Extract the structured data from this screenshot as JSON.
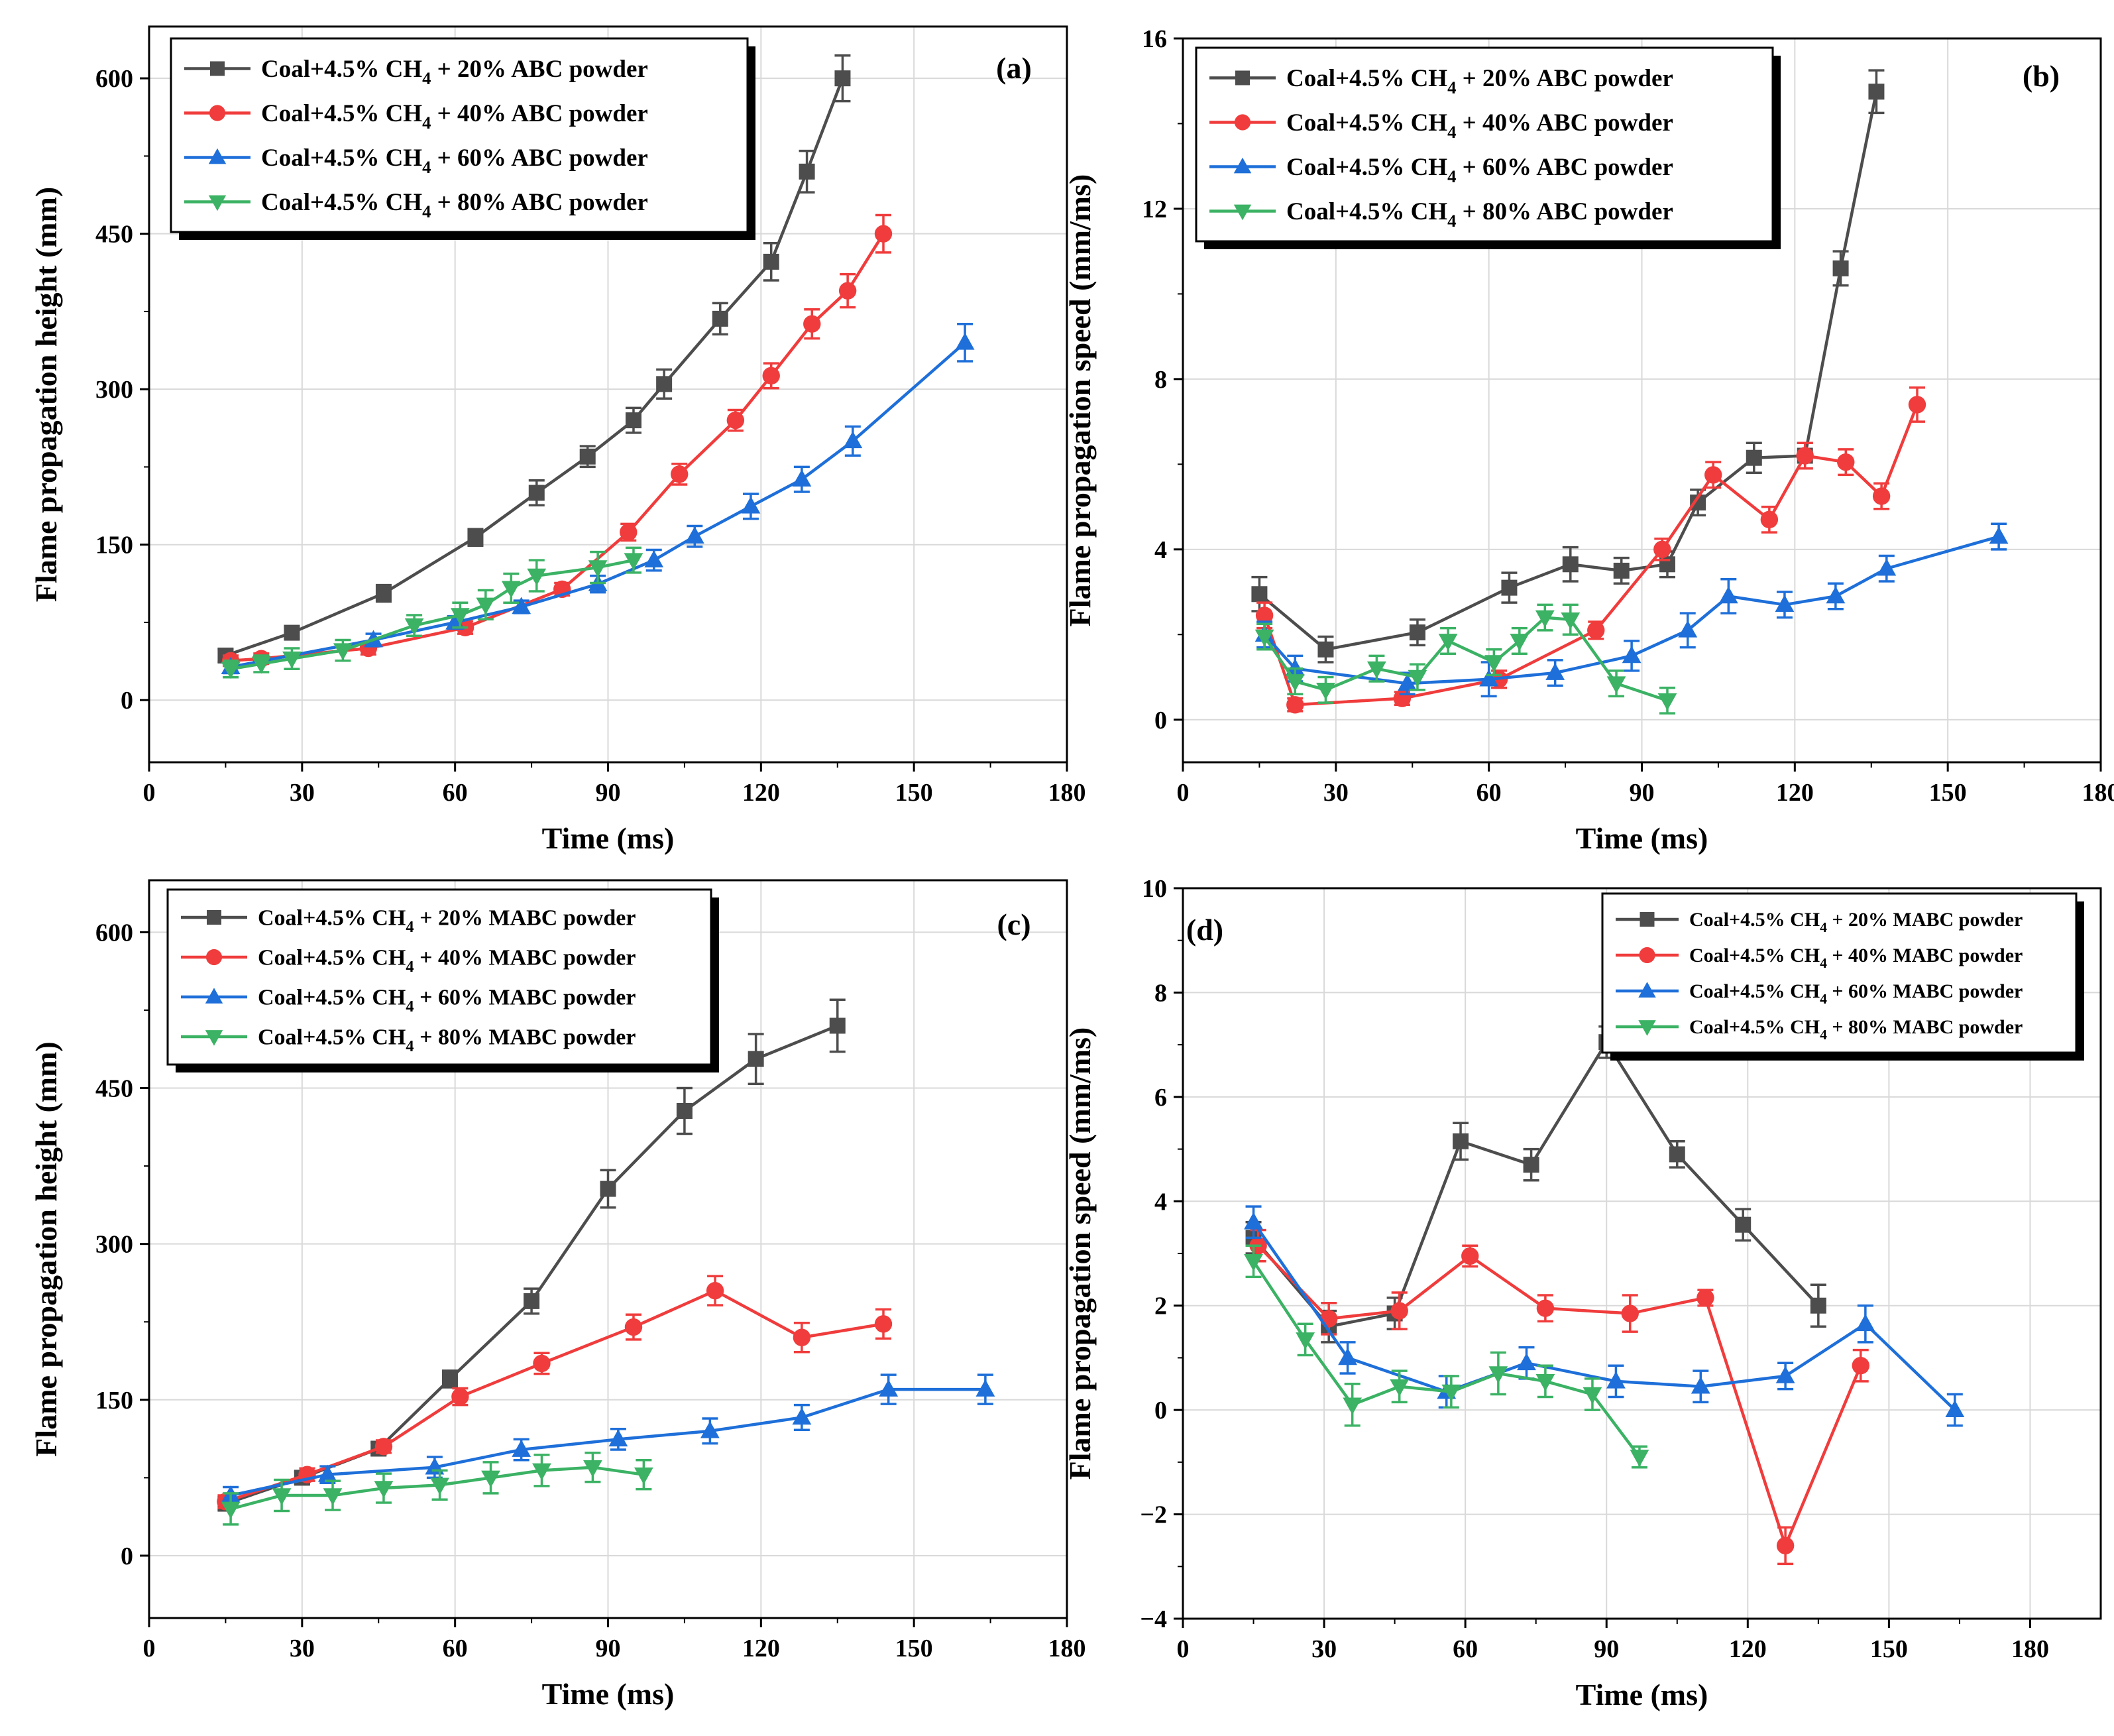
{
  "chart_data": [
    {
      "type": "line",
      "panel_label": "(a)",
      "xlabel": "Time (ms)",
      "ylabel": "Flame propagation height (mm)",
      "xlim": [
        0,
        180
      ],
      "ylim": [
        -60,
        650
      ],
      "xticks": [
        "0",
        "30",
        "60",
        "90",
        "120",
        "150",
        "180"
      ],
      "yticks": [
        "0",
        "150",
        "300",
        "450",
        "600"
      ],
      "legend_position": "top-left",
      "series": [
        {
          "name": "Coal+4.5% CH4 + 20% ABC powder",
          "legend_prefix": "Coal+4.5% CH",
          "legend_sub": "4",
          "legend_suffix": " + 20% ABC powder",
          "color": "#4d4d4d",
          "marker": "square",
          "x": [
            15,
            28,
            46,
            64,
            76,
            86,
            95,
            101,
            112,
            122,
            129,
            136
          ],
          "y": [
            43,
            65,
            103,
            157,
            200,
            235,
            270,
            305,
            368,
            423,
            510,
            600
          ],
          "err": [
            6,
            6,
            8,
            8,
            12,
            10,
            12,
            14,
            15,
            18,
            20,
            22
          ]
        },
        {
          "name": "Coal+4.5% CH4 + 40% ABC powder",
          "legend_prefix": "Coal+4.5% CH",
          "legend_sub": "4",
          "legend_suffix": " + 40% ABC powder",
          "color": "#f03c3c",
          "marker": "circle",
          "x": [
            16,
            22,
            43,
            62,
            81,
            94,
            104,
            115,
            122,
            130,
            137,
            144
          ],
          "y": [
            38,
            40,
            50,
            70,
            107,
            162,
            218,
            270,
            313,
            363,
            395,
            450
          ],
          "err": [
            5,
            5,
            6,
            6,
            6,
            8,
            10,
            10,
            12,
            14,
            16,
            18
          ]
        },
        {
          "name": "Coal+4.5% CH4 + 60% ABC powder",
          "legend_prefix": "Coal+4.5% CH",
          "legend_sub": "4",
          "legend_suffix": " + 60% ABC powder",
          "color": "#1e6fd9",
          "marker": "triangle-up",
          "x": [
            16,
            44,
            60,
            73,
            88,
            99,
            107,
            118,
            128,
            138,
            160
          ],
          "y": [
            32,
            58,
            75,
            90,
            112,
            135,
            158,
            187,
            213,
            250,
            345
          ],
          "err": [
            6,
            6,
            6,
            6,
            8,
            10,
            10,
            12,
            12,
            14,
            18
          ]
        },
        {
          "name": "Coal+4.5% CH4 + 80% ABC powder",
          "legend_prefix": "Coal+4.5% CH",
          "legend_sub": "4",
          "legend_suffix": " + 80% ABC powder",
          "color": "#3bb264",
          "marker": "triangle-down",
          "x": [
            16,
            22,
            28,
            38,
            52,
            61,
            66,
            71,
            76,
            88,
            95
          ],
          "y": [
            30,
            35,
            40,
            48,
            72,
            82,
            92,
            108,
            120,
            128,
            135
          ],
          "err": [
            8,
            8,
            10,
            10,
            10,
            12,
            14,
            14,
            15,
            15,
            12
          ]
        }
      ]
    },
    {
      "type": "line",
      "panel_label": "(b)",
      "xlabel": "Time (ms)",
      "ylabel": "Flame propagation speed (mm/ms)",
      "xlim": [
        0,
        180
      ],
      "ylim": [
        -1,
        16
      ],
      "xticks": [
        "0",
        "30",
        "60",
        "90",
        "120",
        "150",
        "180"
      ],
      "yticks": [
        "0",
        "4",
        "8",
        "12",
        "16"
      ],
      "legend_position": "top-left",
      "series": [
        {
          "name": "Coal+4.5% CH4 + 20% ABC powder",
          "legend_prefix": "Coal+4.5% CH",
          "legend_sub": "4",
          "legend_suffix": " + 20% ABC powder",
          "color": "#4d4d4d",
          "marker": "square",
          "x": [
            15,
            28,
            46,
            64,
            76,
            86,
            95,
            101,
            112,
            122,
            129,
            136
          ],
          "y": [
            2.95,
            1.65,
            2.05,
            3.1,
            3.65,
            3.5,
            3.65,
            5.1,
            6.15,
            6.2,
            10.6,
            14.75
          ],
          "err": [
            0.4,
            0.3,
            0.3,
            0.35,
            0.4,
            0.3,
            0.3,
            0.3,
            0.35,
            0.3,
            0.4,
            0.5
          ]
        },
        {
          "name": "Coal+4.5% CH4 + 40% ABC powder",
          "legend_prefix": "Coal+4.5% CH",
          "legend_sub": "4",
          "legend_suffix": " + 40% ABC powder",
          "color": "#f03c3c",
          "marker": "circle",
          "x": [
            16,
            22,
            43,
            62,
            81,
            94,
            104,
            115,
            122,
            130,
            137,
            144
          ],
          "y": [
            2.45,
            0.35,
            0.5,
            0.95,
            2.1,
            4.0,
            5.75,
            4.7,
            6.2,
            6.05,
            5.25,
            7.4
          ],
          "err": [
            0.3,
            0.15,
            0.15,
            0.2,
            0.2,
            0.25,
            0.3,
            0.3,
            0.3,
            0.3,
            0.3,
            0.4
          ]
        },
        {
          "name": "Coal+4.5% CH4 + 60% ABC powder",
          "legend_prefix": "Coal+4.5% CH",
          "legend_sub": "4",
          "legend_suffix": " + 60% ABC powder",
          "color": "#1e6fd9",
          "marker": "triangle-up",
          "x": [
            16,
            22,
            44,
            60,
            73,
            88,
            99,
            107,
            118,
            128,
            138,
            160
          ],
          "y": [
            2.0,
            1.2,
            0.85,
            0.95,
            1.1,
            1.5,
            2.1,
            2.9,
            2.7,
            2.9,
            3.55,
            4.3
          ],
          "err": [
            0.3,
            0.3,
            0.25,
            0.4,
            0.3,
            0.35,
            0.4,
            0.4,
            0.3,
            0.3,
            0.3,
            0.3
          ]
        },
        {
          "name": "Coal+4.5% CH4 + 80% ABC powder",
          "legend_prefix": "Coal+4.5% CH",
          "legend_sub": "4",
          "legend_suffix": " + 80% ABC powder",
          "color": "#3bb264",
          "marker": "triangle-down",
          "x": [
            16,
            22,
            28,
            38,
            46,
            52,
            61,
            66,
            71,
            76,
            85,
            95
          ],
          "y": [
            1.95,
            0.9,
            0.7,
            1.2,
            1.0,
            1.85,
            1.35,
            1.85,
            2.4,
            2.35,
            0.85,
            0.45
          ],
          "err": [
            0.3,
            0.3,
            0.3,
            0.3,
            0.3,
            0.3,
            0.3,
            0.3,
            0.3,
            0.35,
            0.3,
            0.3
          ]
        }
      ]
    },
    {
      "type": "line",
      "panel_label": "(c)",
      "xlabel": "Time (ms)",
      "ylabel": "Flame propagation height (mm)",
      "xlim": [
        0,
        180
      ],
      "ylim": [
        -60,
        650
      ],
      "xticks": [
        "0",
        "30",
        "60",
        "90",
        "120",
        "150",
        "180"
      ],
      "yticks": [
        "0",
        "150",
        "300",
        "450",
        "600"
      ],
      "legend_position": "top-left",
      "series": [
        {
          "name": "Coal+4.5% CH4 + 20% MABC powder",
          "legend_prefix": "Coal+4.5% CH",
          "legend_sub": "4",
          "legend_suffix": " + 20% MABC powder",
          "color": "#4d4d4d",
          "marker": "square",
          "x": [
            15,
            30,
            45,
            59,
            75,
            90,
            105,
            119,
            135
          ],
          "y": [
            50,
            75,
            103,
            170,
            245,
            353,
            428,
            478,
            510
          ],
          "err": [
            6,
            6,
            6,
            8,
            12,
            18,
            22,
            24,
            25
          ]
        },
        {
          "name": "Coal+4.5% CH4 + 40% MABC powder",
          "legend_prefix": "Coal+4.5% CH",
          "legend_sub": "4",
          "legend_suffix": " + 40% MABC powder",
          "color": "#f03c3c",
          "marker": "circle",
          "x": [
            15,
            31,
            46,
            61,
            77,
            95,
            111,
            128,
            144
          ],
          "y": [
            52,
            78,
            105,
            153,
            185,
            220,
            255,
            210,
            223
          ],
          "err": [
            6,
            6,
            6,
            8,
            10,
            12,
            14,
            14,
            14
          ]
        },
        {
          "name": "Coal+4.5% CH4 + 60% MABC powder",
          "legend_prefix": "Coal+4.5% CH",
          "legend_sub": "4",
          "legend_suffix": " + 60% MABC powder",
          "color": "#1e6fd9",
          "marker": "triangle-up",
          "x": [
            16,
            35,
            56,
            73,
            92,
            110,
            128,
            145,
            164
          ],
          "y": [
            58,
            78,
            85,
            102,
            112,
            120,
            133,
            160,
            160
          ],
          "err": [
            8,
            8,
            10,
            10,
            10,
            12,
            12,
            14,
            14
          ]
        },
        {
          "name": "Coal+4.5% CH4 + 80% MABC powder",
          "legend_prefix": "Coal+4.5% CH",
          "legend_sub": "4",
          "legend_suffix": " + 80% MABC powder",
          "color": "#3bb264",
          "marker": "triangle-down",
          "x": [
            16,
            26,
            36,
            46,
            57,
            67,
            77,
            87,
            97
          ],
          "y": [
            45,
            58,
            58,
            65,
            68,
            75,
            82,
            85,
            78
          ],
          "err": [
            15,
            15,
            14,
            14,
            14,
            15,
            15,
            14,
            14
          ]
        }
      ]
    },
    {
      "type": "line",
      "panel_label": "(d)",
      "xlabel": "Time (ms)",
      "ylabel": "Flame propagation speed (mm/ms)",
      "xlim": [
        0,
        195
      ],
      "ylim": [
        -4,
        10
      ],
      "xticks": [
        "0",
        "30",
        "60",
        "90",
        "120",
        "150",
        "180"
      ],
      "yticks": [
        "−4",
        "−2",
        "0",
        "2",
        "4",
        "6",
        "8",
        "10"
      ],
      "legend_position": "top-right",
      "series": [
        {
          "name": "Coal+4.5% CH4 + 20% MABC powder",
          "legend_prefix": "Coal+4.5% CH",
          "legend_sub": "4",
          "legend_suffix": " + 20% MABC powder",
          "color": "#4d4d4d",
          "marker": "square",
          "x": [
            15,
            31,
            45,
            59,
            74,
            90,
            105,
            119,
            135
          ],
          "y": [
            3.3,
            1.6,
            1.85,
            5.15,
            4.7,
            7.05,
            4.9,
            3.55,
            2.0
          ],
          "err": [
            0.3,
            0.3,
            0.3,
            0.35,
            0.3,
            0.3,
            0.25,
            0.3,
            0.4
          ]
        },
        {
          "name": "Coal+4.5% CH4 + 40% MABC powder",
          "legend_prefix": "Coal+4.5% CH",
          "legend_sub": "4",
          "legend_suffix": " + 40% MABC powder",
          "color": "#f03c3c",
          "marker": "circle",
          "x": [
            16,
            31,
            46,
            61,
            77,
            95,
            111,
            128,
            144
          ],
          "y": [
            3.15,
            1.75,
            1.9,
            2.95,
            1.95,
            1.85,
            2.15,
            -2.6,
            0.85
          ],
          "err": [
            0.3,
            0.3,
            0.35,
            0.2,
            0.25,
            0.35,
            0.15,
            0.35,
            0.3
          ]
        },
        {
          "name": "Coal+4.5% CH4 + 60% MABC powder",
          "legend_prefix": "Coal+4.5% CH",
          "legend_sub": "4",
          "legend_suffix": " + 60% MABC powder",
          "color": "#1e6fd9",
          "marker": "triangle-up",
          "x": [
            15,
            35,
            56,
            73,
            92,
            110,
            128,
            145,
            164
          ],
          "y": [
            3.6,
            1.0,
            0.35,
            0.9,
            0.55,
            0.45,
            0.65,
            1.65,
            0.0
          ],
          "err": [
            0.3,
            0.3,
            0.3,
            0.3,
            0.3,
            0.3,
            0.25,
            0.35,
            0.3
          ]
        },
        {
          "name": "Coal+4.5% CH4 + 80% MABC powder",
          "legend_prefix": "Coal+4.5% CH",
          "legend_sub": "4",
          "legend_suffix": " + 80% MABC powder",
          "color": "#3bb264",
          "marker": "triangle-down",
          "x": [
            15,
            26,
            36,
            46,
            57,
            67,
            77,
            87,
            97
          ],
          "y": [
            2.85,
            1.35,
            0.1,
            0.45,
            0.35,
            0.7,
            0.55,
            0.3,
            -0.9
          ],
          "err": [
            0.3,
            0.3,
            0.4,
            0.3,
            0.3,
            0.4,
            0.3,
            0.3,
            0.2
          ]
        }
      ]
    }
  ]
}
